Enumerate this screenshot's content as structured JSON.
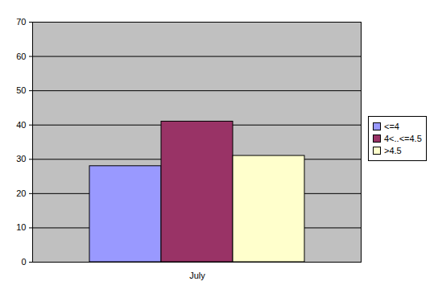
{
  "chart_data": {
    "type": "bar",
    "categories": [
      "July"
    ],
    "series": [
      {
        "name": "<=4",
        "color": "#9999ff",
        "values": [
          28
        ]
      },
      {
        "name": "4<..<=4.5",
        "color": "#993366",
        "values": [
          41
        ]
      },
      {
        "name": ">4.5",
        "color": "#ffffcc",
        "values": [
          31
        ]
      }
    ],
    "ylim": [
      0,
      70
    ],
    "yticks": [
      0,
      10,
      20,
      30,
      40,
      50,
      60,
      70
    ],
    "grid": true,
    "legend": "right"
  }
}
